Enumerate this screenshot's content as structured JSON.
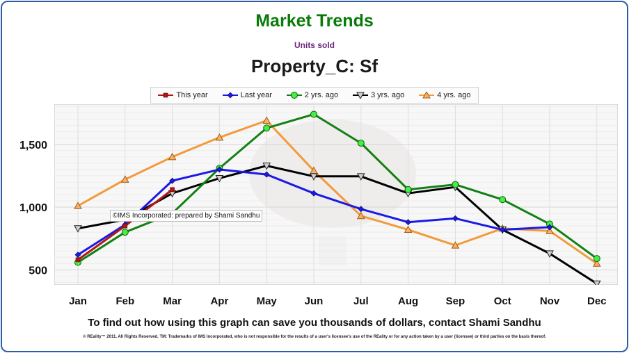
{
  "header": {
    "title": "Market Trends",
    "subtitle": "Units sold",
    "heading": "Property_C: Sf"
  },
  "note": "©IMS Incorporated: prepared by Shami Sandhu",
  "footer": {
    "cta": "To find out how using this graph can save you thousands of dollars, contact Shami Sandhu",
    "fine_print": "© REality™ 2011. All Rights Reserved. TM: Trademarks of IMS Incorporated, who is not responsible for the results of a user's licensee's use of the REality  or for any action taken by a user (licensee) or third parties on the basis thereof."
  },
  "chart_data": {
    "type": "line",
    "title": "Property_C: Sf",
    "categories": [
      "Jan",
      "Feb",
      "Mar",
      "Apr",
      "May",
      "Jun",
      "Jul",
      "Aug",
      "Sep",
      "Oct",
      "Nov",
      "Dec"
    ],
    "ylim": [
      380,
      1820
    ],
    "yticks": [
      500,
      1000,
      1500
    ],
    "ytick_labels": [
      "500",
      "1,000",
      "1,500"
    ],
    "grid": true,
    "legend_position": "top",
    "series": [
      {
        "name": "This year",
        "color": "#b01818",
        "marker": "square",
        "values": [
          580,
          850,
          1140,
          null,
          null,
          null,
          null,
          null,
          null,
          null,
          null,
          null
        ]
      },
      {
        "name": "Last year",
        "color": "#1a1ae6",
        "marker": "diamond",
        "values": [
          620,
          860,
          1210,
          1300,
          1260,
          1110,
          985,
          880,
          910,
          820,
          840,
          null
        ]
      },
      {
        "name": "2 yrs. ago",
        "color": "#128012",
        "marker": "circle",
        "values": [
          560,
          800,
          950,
          1310,
          1630,
          1740,
          1510,
          1140,
          1180,
          1060,
          865,
          590
        ]
      },
      {
        "name": "3 yrs. ago",
        "color": "#000000",
        "marker": "triangle-down",
        "values": [
          830,
          900,
          1110,
          1230,
          1330,
          1245,
          1245,
          1110,
          1160,
          820,
          630,
          390
        ]
      },
      {
        "name": "4 yrs. ago",
        "color": "#f39a3a",
        "marker": "triangle-up",
        "values": [
          1010,
          1220,
          1400,
          1555,
          1690,
          1290,
          930,
          820,
          695,
          830,
          810,
          550
        ]
      }
    ]
  }
}
